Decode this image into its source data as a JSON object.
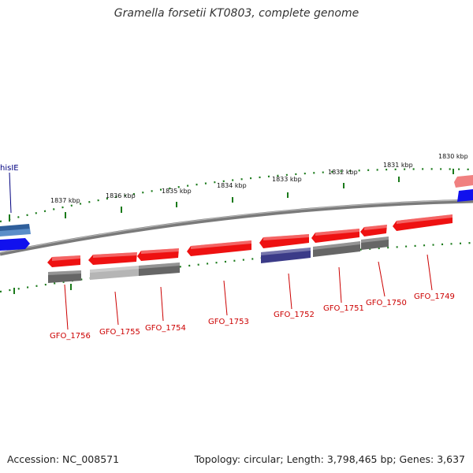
{
  "title": "Gramella forsetii KT0803, complete genome",
  "footer": {
    "accession": "Accession: NC_008571",
    "summary": "Topology: circular; Length: 3,798,465 bp; Genes: 3,637"
  },
  "colors": {
    "backbone": "#7a7a7a",
    "tick": "#1a7a1a",
    "gene_red": "#ee1111",
    "gene_label": "#cc0000",
    "gene_blue": "#1111ee",
    "gene_light_blue": "#5b8ec9",
    "gene_purple": "#3b3b88",
    "gene_grey": "#666666",
    "gene_light_grey": "#b5b5b5",
    "gene_pink": "#f08080"
  },
  "kbp_labels": [
    "1837 kbp",
    "1836 kbp",
    "1835 kbp",
    "1834 kbp",
    "1833 kbp",
    "1832 kbp",
    "1831 kbp",
    "1830 kbp"
  ],
  "highlight_label": "hisIE",
  "gene_labels": [
    "GFO_1756",
    "GFO_1755",
    "GFO_1754",
    "GFO_1753",
    "GFO_1752",
    "GFO_1751",
    "GFO_1750",
    "GFO_1749"
  ]
}
